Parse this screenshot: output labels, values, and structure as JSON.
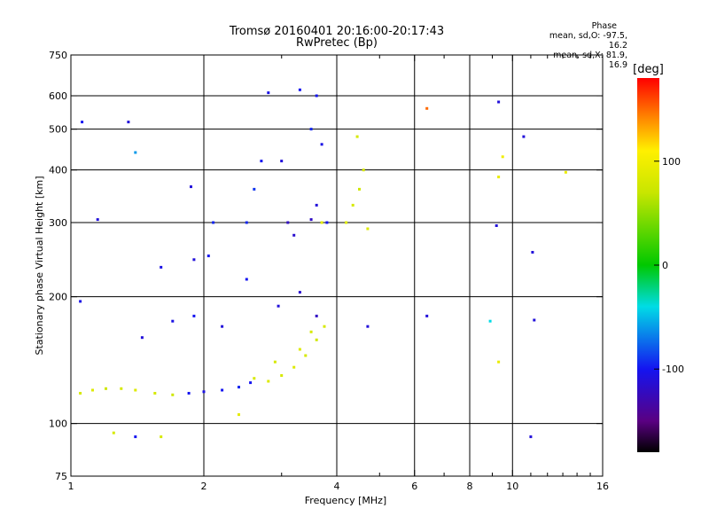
{
  "chart_data": {
    "type": "scatter",
    "title": "Tromsø 20160401 20:16:00-20:17:43",
    "subtitle": "RwPretec (Bp)",
    "xlabel": "Frequency [MHz]",
    "ylabel": "Stationary phase Virtual Height [km]",
    "x_scale": "log",
    "y_scale": "log",
    "xlim": [
      1,
      16
    ],
    "ylim": [
      75,
      750
    ],
    "x_ticks": [
      1,
      2,
      4,
      6,
      8,
      10,
      16
    ],
    "x_minor_ticks": [
      3,
      5,
      7,
      9,
      11,
      12,
      13,
      14,
      15
    ],
    "y_ticks": [
      75,
      100,
      200,
      300,
      400,
      500,
      600,
      750
    ],
    "x_grid": [
      2,
      4,
      6,
      8,
      10
    ],
    "y_grid": [
      100,
      200,
      300,
      400,
      500,
      600
    ],
    "colorbar": {
      "label": "[deg]",
      "min": -180,
      "max": 180,
      "ticks": [
        100,
        0,
        -100
      ],
      "tick_labels": [
        "100",
        "0",
        "-100"
      ]
    },
    "phase_legend": {
      "title": "Phase",
      "line_o": "mean, sd,O: -97.5, 16.2",
      "line_x": "mean, sd,X:  81.9, 16.9"
    },
    "series": [
      {
        "values": [
          {
            "x": 1.05,
            "y": 118,
            "p": 80
          },
          {
            "x": 1.12,
            "y": 120,
            "p": 85
          },
          {
            "x": 1.2,
            "y": 121,
            "p": 75
          },
          {
            "x": 1.3,
            "y": 121,
            "p": 80
          },
          {
            "x": 1.4,
            "y": 120,
            "p": 85
          },
          {
            "x": 1.55,
            "y": 118,
            "p": 80
          },
          {
            "x": 1.7,
            "y": 117,
            "p": 75
          },
          {
            "x": 1.85,
            "y": 118,
            "p": -100
          },
          {
            "x": 2.0,
            "y": 119,
            "p": -105
          },
          {
            "x": 2.2,
            "y": 120,
            "p": -100
          },
          {
            "x": 2.4,
            "y": 122,
            "p": -95
          },
          {
            "x": 2.55,
            "y": 125,
            "p": -100
          },
          {
            "x": 2.6,
            "y": 128,
            "p": 80
          },
          {
            "x": 2.8,
            "y": 126,
            "p": 85
          },
          {
            "x": 3.0,
            "y": 130,
            "p": 80
          },
          {
            "x": 3.2,
            "y": 136,
            "p": 85
          },
          {
            "x": 3.4,
            "y": 145,
            "p": 80
          },
          {
            "x": 3.6,
            "y": 158,
            "p": 75
          },
          {
            "x": 3.75,
            "y": 170,
            "p": 80
          },
          {
            "x": 2.9,
            "y": 140,
            "p": 80
          },
          {
            "x": 3.3,
            "y": 150,
            "p": 85
          },
          {
            "x": 3.5,
            "y": 165,
            "p": 80
          },
          {
            "x": 1.45,
            "y": 160,
            "p": -110
          },
          {
            "x": 1.7,
            "y": 175,
            "p": -105
          },
          {
            "x": 1.9,
            "y": 180,
            "p": -100
          },
          {
            "x": 2.2,
            "y": 170,
            "p": -110
          },
          {
            "x": 1.6,
            "y": 235,
            "p": -105
          },
          {
            "x": 1.9,
            "y": 245,
            "p": -110
          },
          {
            "x": 2.1,
            "y": 300,
            "p": -95
          },
          {
            "x": 2.05,
            "y": 250,
            "p": -100
          },
          {
            "x": 1.87,
            "y": 365,
            "p": -110
          },
          {
            "x": 2.5,
            "y": 220,
            "p": -100
          },
          {
            "x": 2.5,
            "y": 300,
            "p": -95
          },
          {
            "x": 2.6,
            "y": 360,
            "p": -90
          },
          {
            "x": 2.7,
            "y": 420,
            "p": -100
          },
          {
            "x": 2.8,
            "y": 610,
            "p": -105
          },
          {
            "x": 3.0,
            "y": 420,
            "p": -110
          },
          {
            "x": 3.1,
            "y": 300,
            "p": -120
          },
          {
            "x": 3.2,
            "y": 280,
            "p": -115
          },
          {
            "x": 3.5,
            "y": 305,
            "p": -120
          },
          {
            "x": 3.6,
            "y": 330,
            "p": -110
          },
          {
            "x": 3.8,
            "y": 300,
            "p": -100
          },
          {
            "x": 3.3,
            "y": 620,
            "p": -100
          },
          {
            "x": 3.6,
            "y": 600,
            "p": -100
          },
          {
            "x": 3.5,
            "y": 500,
            "p": -95
          },
          {
            "x": 3.7,
            "y": 460,
            "p": -105
          },
          {
            "x": 2.95,
            "y": 190,
            "p": -110
          },
          {
            "x": 3.3,
            "y": 205,
            "p": -115
          },
          {
            "x": 3.6,
            "y": 180,
            "p": -120
          },
          {
            "x": 3.7,
            "y": 300,
            "p": 90
          },
          {
            "x": 4.2,
            "y": 300,
            "p": 85
          },
          {
            "x": 4.35,
            "y": 330,
            "p": 80
          },
          {
            "x": 4.5,
            "y": 360,
            "p": 75
          },
          {
            "x": 4.6,
            "y": 400,
            "p": 80
          },
          {
            "x": 4.45,
            "y": 480,
            "p": 80
          },
          {
            "x": 4.7,
            "y": 290,
            "p": 85
          },
          {
            "x": 1.06,
            "y": 520,
            "p": -100
          },
          {
            "x": 1.05,
            "y": 195,
            "p": -105
          },
          {
            "x": 1.35,
            "y": 520,
            "p": -110
          },
          {
            "x": 1.4,
            "y": 440,
            "p": -60
          },
          {
            "x": 1.15,
            "y": 305,
            "p": -110
          },
          {
            "x": 1.25,
            "y": 95,
            "p": 80
          },
          {
            "x": 1.4,
            "y": 93,
            "p": -100
          },
          {
            "x": 1.6,
            "y": 93,
            "p": 80
          },
          {
            "x": 2.4,
            "y": 105,
            "p": 90
          },
          {
            "x": 6.4,
            "y": 560,
            "p": 150
          },
          {
            "x": 6.4,
            "y": 180,
            "p": -110
          },
          {
            "x": 8.9,
            "y": 175,
            "p": -40
          },
          {
            "x": 9.3,
            "y": 580,
            "p": -110
          },
          {
            "x": 9.2,
            "y": 295,
            "p": -110
          },
          {
            "x": 9.3,
            "y": 385,
            "p": 95
          },
          {
            "x": 9.3,
            "y": 140,
            "p": 95
          },
          {
            "x": 9.5,
            "y": 430,
            "p": 100
          },
          {
            "x": 10.6,
            "y": 480,
            "p": -110
          },
          {
            "x": 11.1,
            "y": 255,
            "p": -110
          },
          {
            "x": 11.2,
            "y": 176,
            "p": -110
          },
          {
            "x": 11.0,
            "y": 93,
            "p": -110
          },
          {
            "x": 13.2,
            "y": 395,
            "p": 95
          },
          {
            "x": 4.7,
            "y": 170,
            "p": -110
          }
        ]
      }
    ]
  }
}
